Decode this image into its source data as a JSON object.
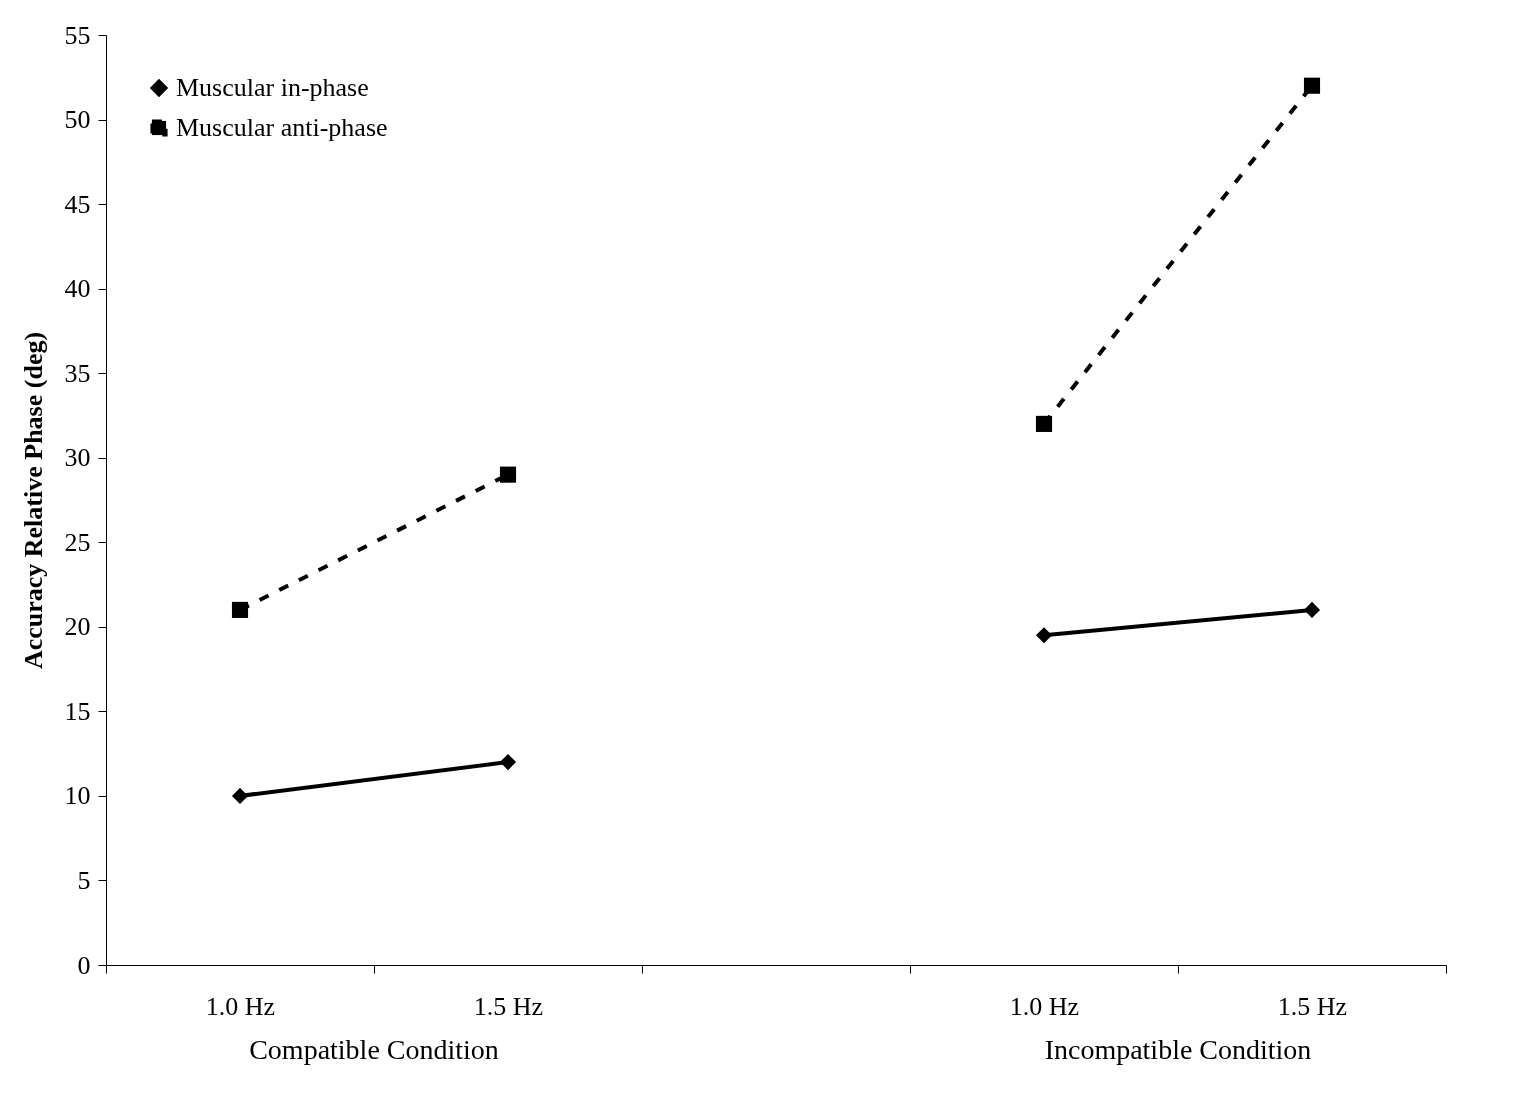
{
  "chart_data": {
    "type": "line",
    "ylabel": "Accuracy Relative Phase (deg)",
    "categories": [
      "1.0 Hz",
      "1.5 Hz",
      null,
      "1.0 Hz",
      "1.5 Hz"
    ],
    "series": [
      {
        "name": "Muscular in-phase",
        "color": "#000000",
        "marker": "diamond",
        "line_style": "solid",
        "values": [
          10,
          12,
          null,
          19.5,
          21
        ]
      },
      {
        "name": "Muscular anti-phase",
        "color": "#000000",
        "marker": "square",
        "line_style": "dashed",
        "values": [
          21,
          29,
          null,
          32,
          52
        ]
      }
    ],
    "ylim": [
      0,
      55
    ],
    "yticks": [
      0,
      5,
      10,
      15,
      20,
      25,
      30,
      35,
      40,
      45,
      50,
      55
    ],
    "annotations": [
      "Compatible Condition",
      "Incompatible Condition"
    ],
    "grid": false,
    "legend": "top left"
  }
}
